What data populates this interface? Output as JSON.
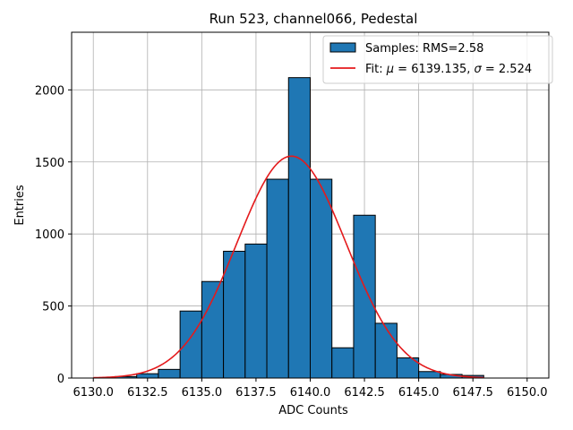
{
  "chart_data": {
    "type": "bar",
    "title": "Run 523, channel066, Pedestal",
    "xlabel": "ADC Counts",
    "ylabel": "Entries",
    "xlim": [
      6129.0,
      6151.0
    ],
    "ylim": [
      0,
      2400
    ],
    "xticks": [
      6130.0,
      6132.5,
      6135.0,
      6137.5,
      6140.0,
      6142.5,
      6145.0,
      6147.5,
      6150.0
    ],
    "xtick_labels": [
      "6130.0",
      "6132.5",
      "6135.0",
      "6137.5",
      "6140.0",
      "6142.5",
      "6145.0",
      "6147.5",
      "6150.0"
    ],
    "yticks": [
      0,
      500,
      1000,
      1500,
      2000
    ],
    "ytick_labels": [
      "0",
      "500",
      "1000",
      "1500",
      "2000"
    ],
    "grid": true,
    "histogram": {
      "name": "Samples: RMS=2.58",
      "color": "#1f77b4",
      "edge_color": "#000000",
      "bin_edges": [
        6130,
        6131,
        6132,
        6133,
        6134,
        6135,
        6136,
        6137,
        6138,
        6139,
        6140,
        6141,
        6142,
        6143,
        6144,
        6145,
        6146,
        6147,
        6148
      ],
      "counts": [
        0,
        10,
        30,
        60,
        465,
        670,
        880,
        930,
        1380,
        2085,
        1380,
        210,
        1130,
        380,
        140,
        45,
        25,
        18
      ]
    },
    "fit": {
      "name_prefix": "Fit: ",
      "mu_symbol": "μ",
      "sigma_symbol": "σ",
      "mu_text": " = 6139.135, ",
      "sigma_text": " = 2.524",
      "mu": 6139.135,
      "sigma": 2.524,
      "amplitude": 1540,
      "x_range": [
        6130,
        6148
      ],
      "color": "#e41a1c"
    },
    "legend_position": "upper-right"
  }
}
